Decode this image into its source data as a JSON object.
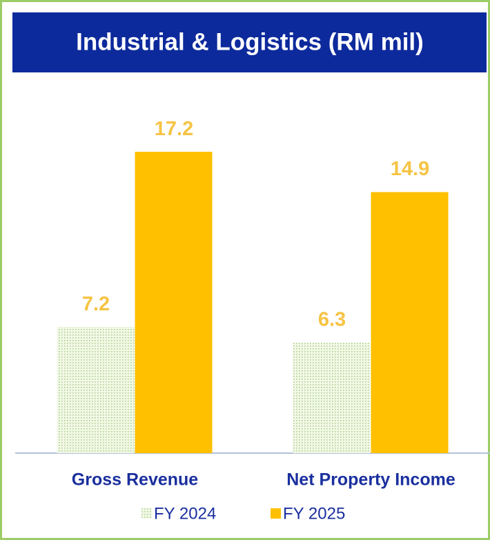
{
  "chart_data": {
    "type": "bar",
    "title": "Industrial & Logistics (RM mil)",
    "categories": [
      "Gross Revenue",
      "Net Property Income"
    ],
    "series": [
      {
        "name": "FY 2024",
        "color": "#a9d18e",
        "values": [
          7.2,
          6.3
        ]
      },
      {
        "name": "FY 2025",
        "color": "#ffc000",
        "values": [
          17.2,
          14.9
        ]
      }
    ],
    "ylim": [
      0,
      20
    ]
  }
}
